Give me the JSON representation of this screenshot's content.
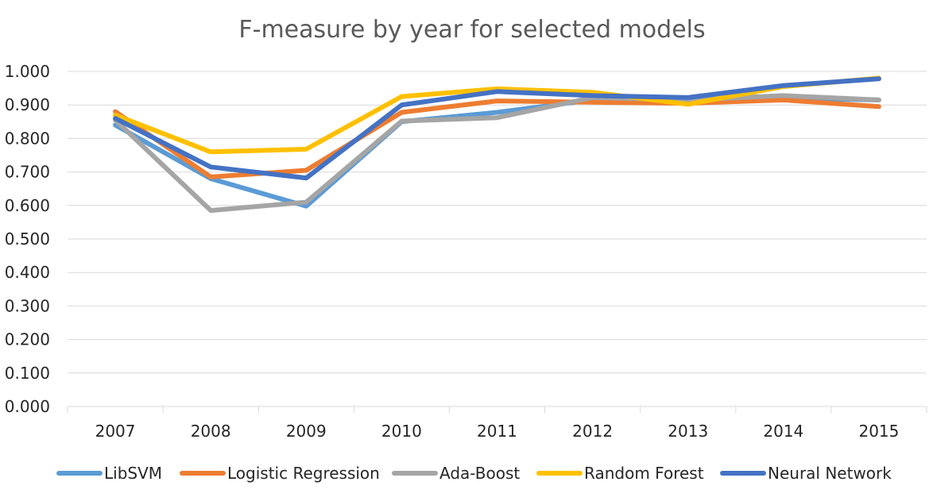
{
  "chart_data": {
    "type": "line",
    "title": "F-measure by year for selected models",
    "xlabel": "",
    "ylabel": "",
    "categories": [
      "2007",
      "2008",
      "2009",
      "2010",
      "2011",
      "2012",
      "2013",
      "2014",
      "2015"
    ],
    "ylim": [
      0,
      1
    ],
    "y_ticks": [
      "0.000",
      "0.100",
      "0.200",
      "0.300",
      "0.400",
      "0.500",
      "0.600",
      "0.700",
      "0.800",
      "0.900",
      "1.000"
    ],
    "grid": true,
    "legend_position": "bottom",
    "series": [
      {
        "name": "LibSVM",
        "color": "#5B9BD5",
        "values": [
          0.84,
          0.68,
          0.598,
          0.85,
          0.878,
          0.915,
          0.912,
          0.92,
          0.915
        ]
      },
      {
        "name": "Logistic Regression",
        "color": "#ED7D31",
        "values": [
          0.88,
          0.685,
          0.705,
          0.878,
          0.912,
          0.908,
          0.905,
          0.915,
          0.895
        ]
      },
      {
        "name": "Ada-Boost",
        "color": "#A5A5A5",
        "values": [
          0.855,
          0.585,
          0.61,
          0.852,
          0.862,
          0.922,
          0.915,
          0.928,
          0.915
        ]
      },
      {
        "name": "Random Forest",
        "color": "#FFC000",
        "values": [
          0.87,
          0.76,
          0.768,
          0.925,
          0.948,
          0.938,
          0.902,
          0.955,
          0.98
        ]
      },
      {
        "name": "Neural Network",
        "color": "#4472C4",
        "values": [
          0.86,
          0.715,
          0.682,
          0.9,
          0.94,
          0.928,
          0.922,
          0.958,
          0.978
        ]
      }
    ]
  }
}
